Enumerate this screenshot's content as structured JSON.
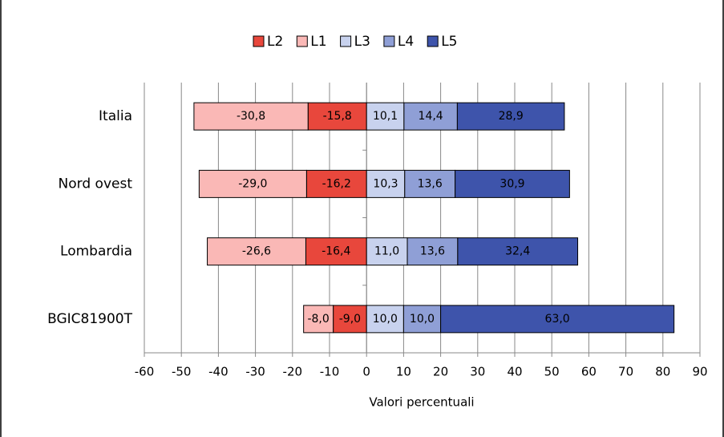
{
  "chart_data": {
    "type": "diverging_stacked_barh",
    "categories": [
      "Italia",
      "Nord ovest",
      "Lombardia",
      "BGIC81900T"
    ],
    "series": [
      {
        "name": "L2",
        "color": "#e8473c",
        "values": [
          -15.8,
          -16.2,
          -16.4,
          -9.0
        ],
        "value_labels": [
          "-15,8",
          "-16,2",
          "-16,4",
          "-9,0"
        ]
      },
      {
        "name": "L1",
        "color": "#fab8b6",
        "values": [
          -30.8,
          -29.0,
          -26.6,
          -8.0
        ],
        "value_labels": [
          "-30,8",
          "-29,0",
          "-26,6",
          "-8,0"
        ]
      },
      {
        "name": "L3",
        "color": "#c8d2ee",
        "values": [
          10.1,
          10.3,
          11.0,
          10.0
        ],
        "value_labels": [
          "10,1",
          "10,3",
          "11,0",
          "10,0"
        ]
      },
      {
        "name": "L4",
        "color": "#8f9fd6",
        "values": [
          14.4,
          13.6,
          13.6,
          10.0
        ],
        "value_labels": [
          "14,4",
          "13,6",
          "13,6",
          "10,0"
        ]
      },
      {
        "name": "L5",
        "color": "#3e54ab",
        "values": [
          28.9,
          30.9,
          32.4,
          63.0
        ],
        "value_labels": [
          "28,9",
          "30,9",
          "32,4",
          "63,0"
        ]
      }
    ],
    "xlabel": "Valori percentuali",
    "xlim": [
      -60,
      90
    ],
    "xticks": [
      -60,
      -50,
      -40,
      -30,
      -20,
      -10,
      0,
      10,
      20,
      30,
      40,
      50,
      60,
      70,
      80,
      90
    ],
    "grid": true,
    "legend": "top"
  }
}
